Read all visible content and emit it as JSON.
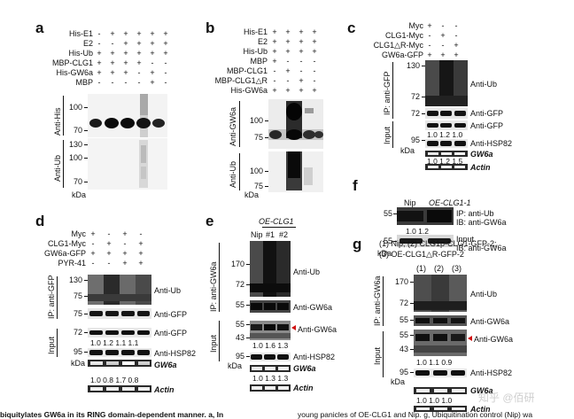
{
  "panels": {
    "a": {
      "letter": "a",
      "conditions": [
        {
          "label": "His-E1",
          "values": [
            "-",
            "+",
            "+",
            "+",
            "+",
            "+"
          ]
        },
        {
          "label": "E2",
          "values": [
            "-",
            "-",
            "+",
            "+",
            "+",
            "+"
          ]
        },
        {
          "label": "His-Ub",
          "values": [
            "+",
            "+",
            "+",
            "+",
            "+",
            "+"
          ]
        },
        {
          "label": "MBP-CLG1",
          "values": [
            "+",
            "+",
            "+",
            "+",
            "-",
            "-"
          ]
        },
        {
          "label": "His-GW6a",
          "values": [
            "+",
            "+",
            "+",
            "-",
            "+",
            "-"
          ]
        },
        {
          "label": "MBP",
          "values": [
            "-",
            "-",
            "-",
            "-",
            "+",
            "-"
          ]
        }
      ],
      "blot1_label": "Anti-His",
      "blot2_label": "Anti-Ub",
      "mw1": [
        "100",
        "70"
      ],
      "mw2": [
        "130",
        "100",
        "70"
      ],
      "kda": "kDa"
    },
    "b": {
      "letter": "b",
      "conditions": [
        {
          "label": "His-E1",
          "values": [
            "+",
            "+",
            "+",
            "+"
          ]
        },
        {
          "label": "E2",
          "values": [
            "+",
            "+",
            "+",
            "+"
          ]
        },
        {
          "label": "His-Ub",
          "values": [
            "+",
            "+",
            "+",
            "+"
          ]
        },
        {
          "label": "MBP",
          "values": [
            "+",
            "-",
            "-",
            "-"
          ]
        },
        {
          "label": "MBP-CLG1",
          "values": [
            "-",
            "+",
            "-",
            "-"
          ]
        },
        {
          "label": "MBP-CLG1△R",
          "values": [
            "-",
            "-",
            "+",
            "-"
          ]
        },
        {
          "label": "His-GW6a",
          "values": [
            "+",
            "+",
            "+",
            "+"
          ]
        }
      ],
      "blot1_label": "Anti-GW6a",
      "blot2_label": "Anti-Ub",
      "mw1": [
        "100",
        "75"
      ],
      "mw2": [
        "100",
        "75"
      ],
      "kda": "kDa"
    },
    "c": {
      "letter": "c",
      "conditions": [
        {
          "label": "Myc",
          "values": [
            "+",
            "-",
            "-"
          ]
        },
        {
          "label": "CLG1-Myc",
          "values": [
            "-",
            "+",
            "-"
          ]
        },
        {
          "label": "CLG1△R-Myc",
          "values": [
            "-",
            "-",
            "+"
          ]
        },
        {
          "label": "GW6a-GFP",
          "values": [
            "+",
            "+",
            "+"
          ]
        }
      ],
      "ip_label": "IP: anti-GFP",
      "input_label": "Input",
      "blot_labels": [
        "Anti-Ub",
        "Anti-GFP",
        "Anti-GFP",
        "Anti-HSP82"
      ],
      "mw": [
        "130",
        "72",
        "72",
        "95"
      ],
      "quant": "1.0   1.2   1.0",
      "gene_quant": "1.0   1.2   1.5",
      "gene": "GW6a",
      "actin": "Actin",
      "kda": "kDa"
    },
    "d": {
      "letter": "d",
      "conditions": [
        {
          "label": "Myc",
          "values": [
            "+",
            "-",
            "+",
            "-"
          ]
        },
        {
          "label": "CLG1-Myc",
          "values": [
            "-",
            "+",
            "-",
            "+"
          ]
        },
        {
          "label": "GW6a-GFP",
          "values": [
            "+",
            "+",
            "+",
            "+"
          ]
        },
        {
          "label": "PYR-41",
          "values": [
            "-",
            "-",
            "+",
            "+"
          ]
        }
      ],
      "ip_label": "IP: anti-GFP",
      "input_label": "Input",
      "blot_labels": [
        "Anti-Ub",
        "Anti-GFP",
        "Anti-GFP",
        "Anti-HSP82"
      ],
      "mw": [
        "130",
        "75",
        "75",
        "72",
        "95"
      ],
      "quant": "1.0   1.2   1.1   1.1",
      "gene_quant": "1.0   0.8   1.7   0.8",
      "gene": "GW6a",
      "actin": "Actin",
      "kda": "kDa"
    },
    "e": {
      "letter": "e",
      "header": "OE-CLG1",
      "lanes": [
        "Nip",
        "#1",
        "#2"
      ],
      "ip_label": "IP: anti-GW6a",
      "input_label": "Input",
      "blot_labels": [
        "Anti-Ub",
        "Anti-GW6a",
        "Anti-GW6a",
        "Anti-HSP82"
      ],
      "mw": [
        "170",
        "72",
        "55",
        "55",
        "43",
        "95"
      ],
      "quant": "1.0  1.6  1.3",
      "gene_quant": "1.0   1.3   1.3",
      "gene": "GW6a",
      "actin": "Actin",
      "kda": "kDa"
    },
    "f": {
      "letter": "f",
      "lane1": "Nip",
      "lane2": "OE-CLG1-1",
      "blot1_label_a": "IP: anti-Ub",
      "blot1_label_b": "IB: anti-GW6a",
      "quant": "1.0          1.2",
      "blot2_label_a": "Input",
      "blot2_label_b": "IB: anti-GW6a",
      "mw1": [
        "55"
      ],
      "mw2": [
        "55"
      ],
      "kda": "kDa"
    },
    "g": {
      "letter": "g",
      "legend1": "(1) Nip; (2) CLG1p-CLG1-GFP-2;",
      "legend2": "(3) OE-CLG1△R-GFP-2",
      "lanes": [
        "(1)",
        "(2)",
        "(3)"
      ],
      "ip_label": "IP: anti-GW6a",
      "input_label": "Input",
      "blot_labels": [
        "Anti-Ub",
        "Anti-GW6a",
        "Anti-GW6a",
        "Anti-HSP82"
      ],
      "mw": [
        "170",
        "72",
        "55",
        "55",
        "43",
        "95"
      ],
      "quant": "1.0    1.1    0.9",
      "gene_quant": "1.0    1.0    1.0",
      "gene": "GW6a",
      "actin": "Actin",
      "kda": "kDa"
    }
  },
  "caption_left": "biquitylates GW6a in its RING domain-dependent manner. a, In",
  "caption_right": "young panicles of OE-CLG1 and Nip. g, Ubiquitination control (Nip) wa",
  "watermark": "知乎 @佰研"
}
